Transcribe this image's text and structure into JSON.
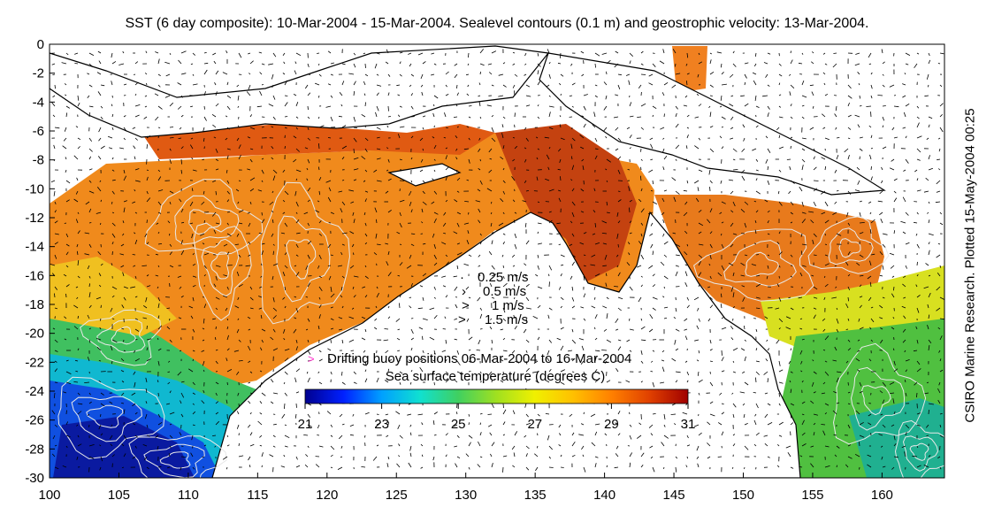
{
  "title": "SST (6 day composite): 10-Mar-2004 - 15-Mar-2004. Sealevel contours (0.1 m) and geostrophic velocity: 13-Mar-2004.",
  "side_credit": "CSIRO Marine Research. Plotted 15-May-2004 00:25",
  "axes": {
    "x_ticks": [
      "100",
      "105",
      "110",
      "115",
      "120",
      "125",
      "130",
      "135",
      "140",
      "145",
      "150",
      "155",
      "160"
    ],
    "y_ticks": [
      "0",
      "-2",
      "-4",
      "-6",
      "-8",
      "-10",
      "-12",
      "-14",
      "-16",
      "-18",
      "-20",
      "-22",
      "-24",
      "-26",
      "-28",
      "-30"
    ],
    "xlim": [
      100,
      164.5
    ],
    "ylim": [
      -30,
      0
    ]
  },
  "velocity_key": {
    "items": [
      {
        "glyph": "·",
        "label": "0.25 m/s"
      },
      {
        "glyph": "›",
        "label": "0.5 m/s"
      },
      {
        "glyph": ">",
        "label": "1 m/s"
      },
      {
        "glyph": ">",
        "label": "1.5 m/s"
      }
    ]
  },
  "buoy_legend": {
    "glyph": ">",
    "color": "#ff33cc",
    "label": "Drifting buoy positions 06-Mar-2004 to 16-Mar-2004"
  },
  "colorbar": {
    "label": "Sea surface temperature (degrees C)",
    "ticks": [
      "21",
      "23",
      "25",
      "27",
      "29",
      "31"
    ],
    "colors": [
      "#00008f",
      "#0020ff",
      "#00a0ff",
      "#10e0d0",
      "#40d060",
      "#a0e020",
      "#f0f000",
      "#ffc000",
      "#ff8000",
      "#e04000",
      "#a00000"
    ]
  },
  "colors": {
    "land": "#ffffff",
    "coast": "#000000",
    "contour": "#e8e8e8",
    "arrows": "#000000"
  }
}
